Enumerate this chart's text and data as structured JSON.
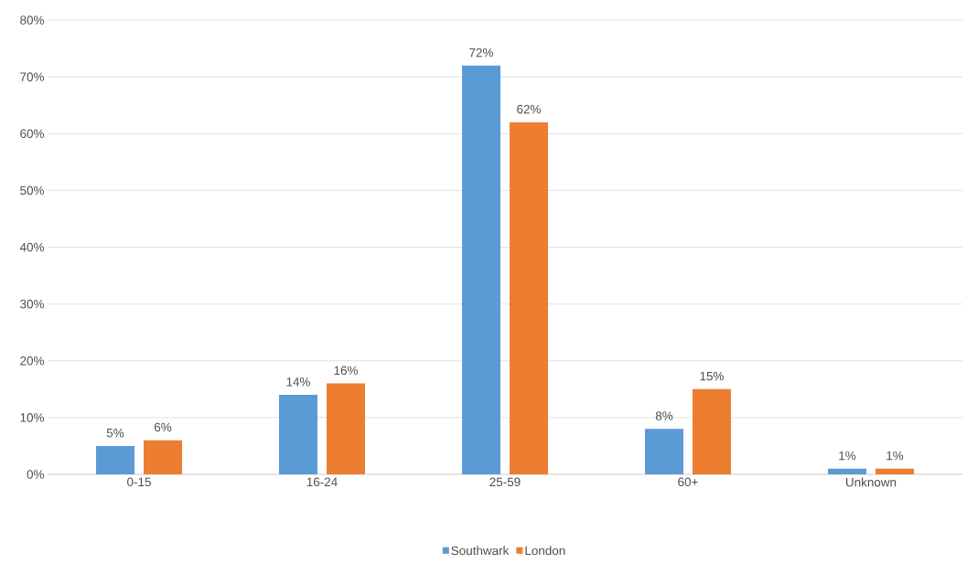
{
  "chart_data": {
    "type": "bar",
    "categories": [
      "0-15",
      "16-24",
      "25-59",
      "60+",
      "Unknown"
    ],
    "series": [
      {
        "name": "Southwark",
        "color": "#5b9bd5",
        "values": [
          5,
          14,
          72,
          8,
          1
        ],
        "value_labels": [
          "5%",
          "14%",
          "72%",
          "8%",
          "1%"
        ]
      },
      {
        "name": "London",
        "color": "#ed7d31",
        "values": [
          6,
          16,
          62,
          15,
          1
        ],
        "value_labels": [
          "6%",
          "16%",
          "62%",
          "15%",
          "1%"
        ]
      }
    ],
    "ylim": [
      0,
      80
    ],
    "yticks": [
      {
        "value": 0,
        "label": "0%"
      },
      {
        "value": 10,
        "label": "10%"
      },
      {
        "value": 20,
        "label": "20%"
      },
      {
        "value": 30,
        "label": "30%"
      },
      {
        "value": 40,
        "label": "40%"
      },
      {
        "value": 50,
        "label": "50%"
      },
      {
        "value": 60,
        "label": "60%"
      },
      {
        "value": 70,
        "label": "70%"
      },
      {
        "value": 80,
        "label": "80%"
      }
    ],
    "grid": "y",
    "legend": "bottom"
  }
}
